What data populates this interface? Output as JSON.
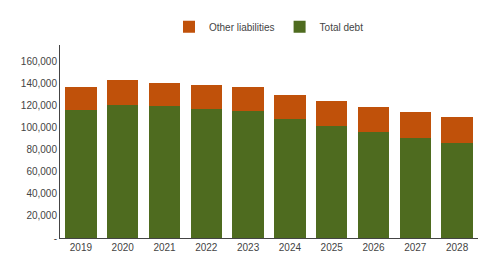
{
  "chart_data": {
    "type": "bar",
    "stacked": true,
    "categories": [
      "2019",
      "2020",
      "2021",
      "2022",
      "2023",
      "2024",
      "2025",
      "2026",
      "2027",
      "2028"
    ],
    "series": [
      {
        "name": "Total debt",
        "color": "#4E6B1F",
        "values": [
          116000,
          121000,
          120000,
          117000,
          115000,
          108000,
          102000,
          96000,
          91000,
          86000
        ]
      },
      {
        "name": "Other liabilities",
        "color": "#C0510A",
        "values": [
          21000,
          22000,
          21000,
          22000,
          22000,
          22000,
          22000,
          23000,
          23000,
          24000
        ]
      }
    ],
    "ylim": [
      0,
      175000
    ],
    "yticks": [
      {
        "value": 0,
        "label": "-"
      },
      {
        "value": 20000,
        "label": "20,000"
      },
      {
        "value": 40000,
        "label": "40,000"
      },
      {
        "value": 60000,
        "label": "60,000"
      },
      {
        "value": 80000,
        "label": "80,000"
      },
      {
        "value": 100000,
        "label": "100,000"
      },
      {
        "value": 120000,
        "label": "120,000"
      },
      {
        "value": 140000,
        "label": "140,000"
      },
      {
        "value": 160000,
        "label": "160,000"
      }
    ],
    "grid": false,
    "legend": "upper center"
  }
}
